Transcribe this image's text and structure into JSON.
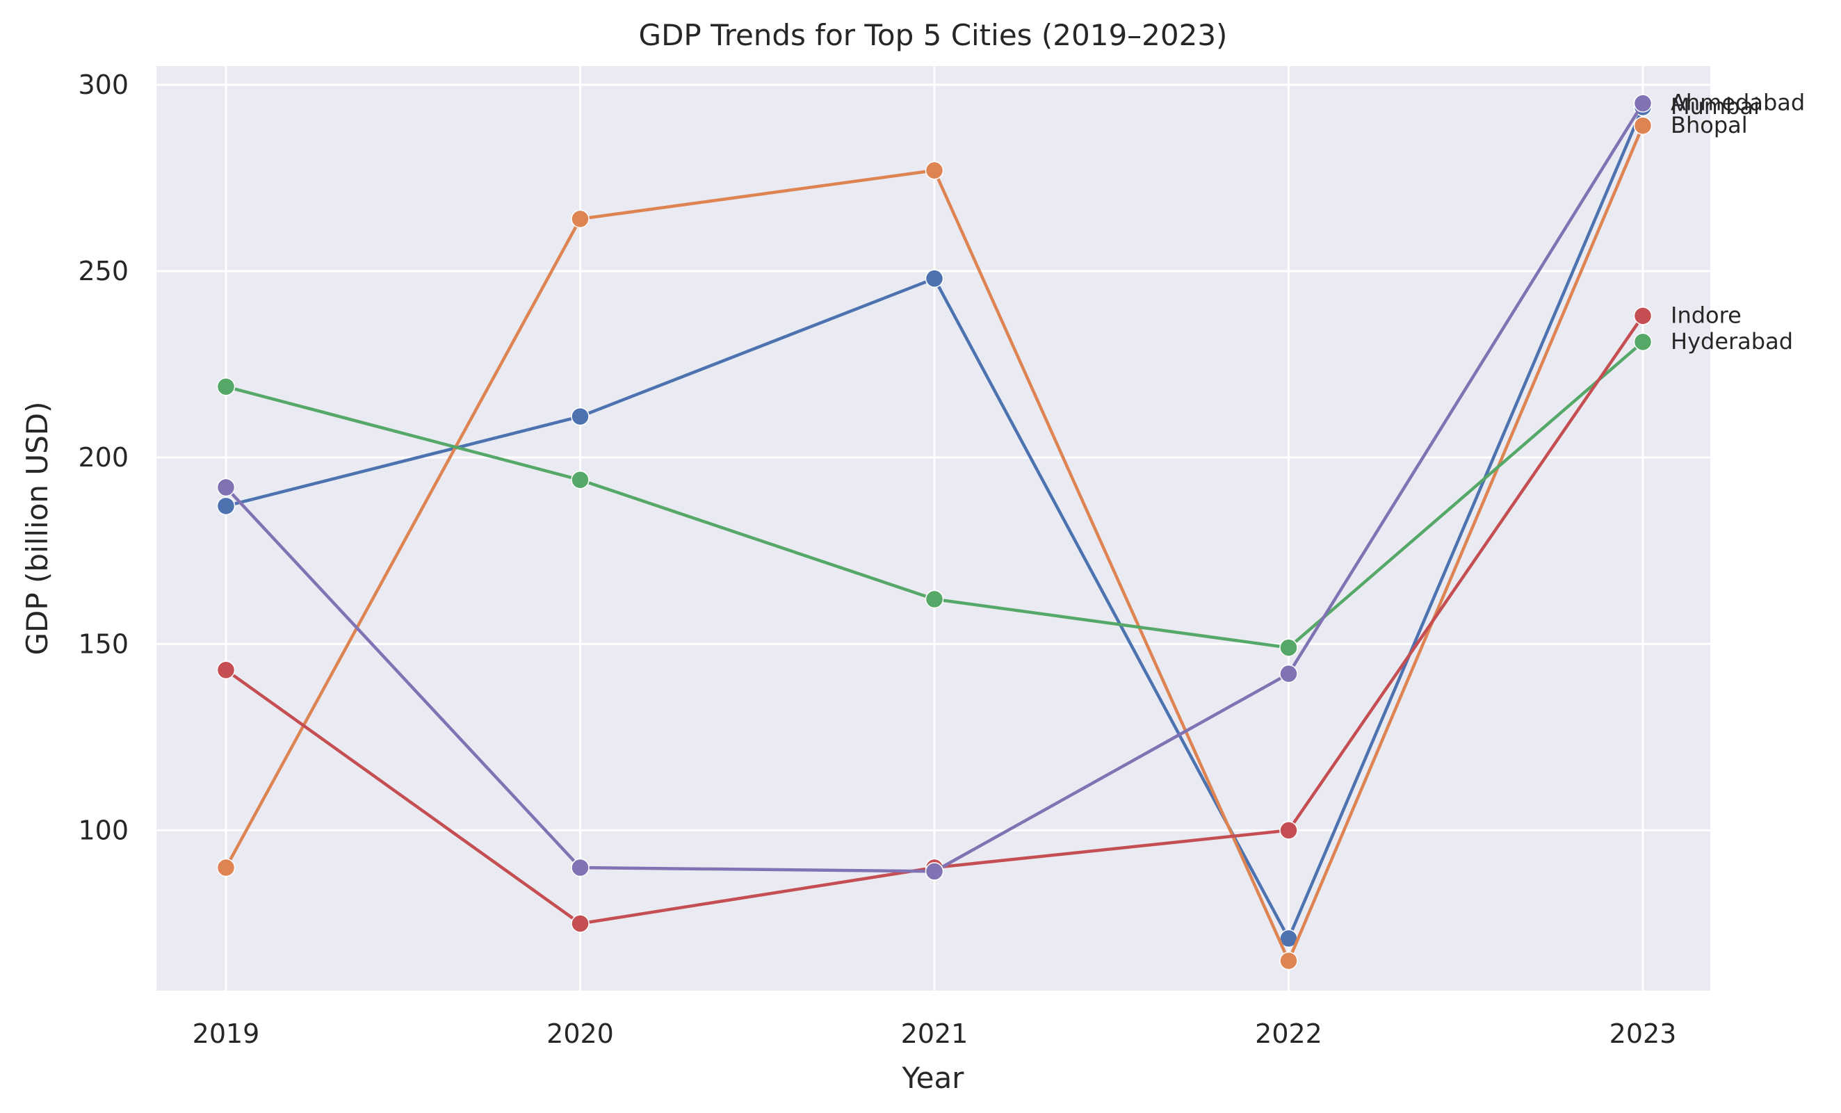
{
  "chart_data": {
    "type": "line",
    "title": "GDP Trends for Top 5 Cities (2019–2023)",
    "xlabel": "Year",
    "ylabel": "GDP (billion USD)",
    "x": [
      "2019",
      "2020",
      "2021",
      "2022",
      "2023"
    ],
    "ylim": [
      57,
      305
    ],
    "yticks": [
      "100",
      "150",
      "200",
      "250",
      "300"
    ],
    "grid": true,
    "legend": "labels at line ends",
    "series": [
      {
        "name": "Mumbai",
        "color": "#4c72b0",
        "values": [
          187,
          211,
          248,
          71,
          294
        ]
      },
      {
        "name": "Bhopal",
        "color": "#dd8452",
        "values": [
          90,
          264,
          277,
          65,
          289
        ]
      },
      {
        "name": "Hyderabad",
        "color": "#55a868",
        "values": [
          219,
          194,
          162,
          149,
          231
        ]
      },
      {
        "name": "Indore",
        "color": "#c44e52",
        "values": [
          143,
          75,
          90,
          100,
          238
        ]
      },
      {
        "name": "Ahmedabad",
        "color": "#8172b3",
        "values": [
          192,
          90,
          89,
          142,
          295
        ]
      }
    ]
  }
}
